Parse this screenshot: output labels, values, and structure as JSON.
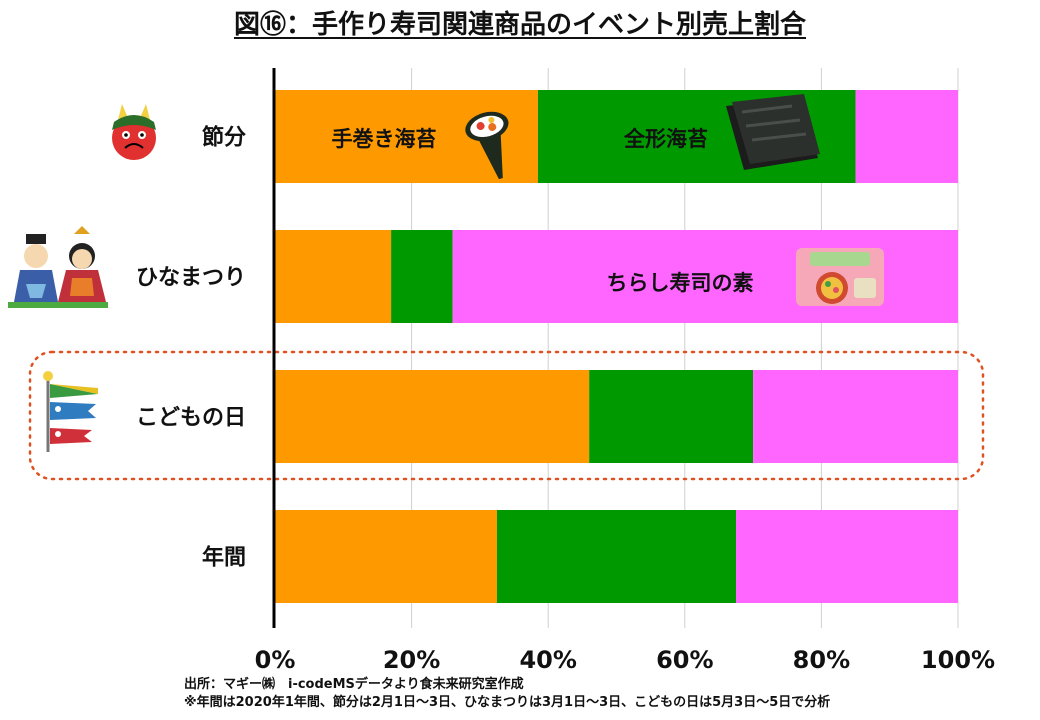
{
  "title": "図⑯：手作り寿司関連商品のイベント別売上割合",
  "source": {
    "line1": "出所：マギー㈱　i-codeMSデータより食未来研究室作成",
    "line2": "※年間は2020年1年間、節分は2月1日～3日、ひなまつりは3月1日～3日、こどもの日は5月3日～5日で分析"
  },
  "colors": {
    "temaki": "#ff9900",
    "zenkei": "#009900",
    "chirashi": "#ff66ff",
    "highlight": "#e05020"
  },
  "icons": [
    "oni-icon",
    "hina-dolls-icon",
    "koinobori-icon",
    "temaki-sushi-icon",
    "nori-sheet-icon",
    "chirashi-package-icon"
  ],
  "chart_data": {
    "type": "bar",
    "orientation": "horizontal",
    "stacked": true,
    "categories": [
      "節分",
      "ひなまつり",
      "こどもの日",
      "年間"
    ],
    "series": [
      {
        "name": "手巻き海苔",
        "values": [
          38.5,
          17,
          46,
          32.5
        ]
      },
      {
        "name": "全形海苔",
        "values": [
          46.5,
          9,
          24,
          35
        ]
      },
      {
        "name": "ちらし寿司の素",
        "values": [
          15,
          74,
          30,
          32.5
        ]
      }
    ],
    "xlim": [
      0,
      100
    ],
    "xticks": [
      "0%",
      "20%",
      "40%",
      "60%",
      "80%",
      "100%"
    ],
    "grid": true,
    "highlighted_category": "こどもの日"
  }
}
